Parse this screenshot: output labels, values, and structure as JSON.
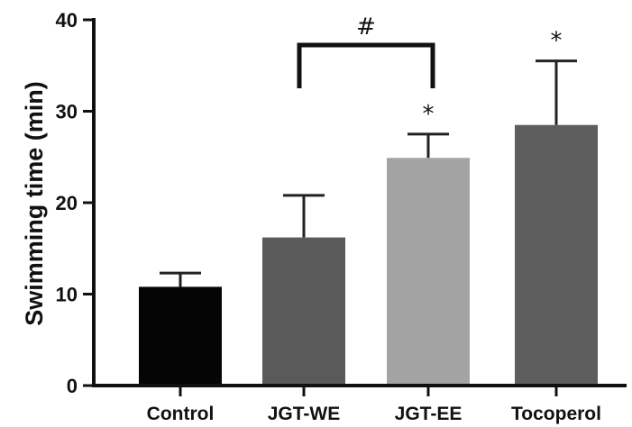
{
  "chart_data": {
    "type": "bar",
    "ylabel": "Swimming time (min)",
    "ylim": [
      0,
      40
    ],
    "yticks": [
      0,
      10,
      20,
      30,
      40
    ],
    "categories": [
      "Control",
      "JGT-WE",
      "JGT-EE",
      "Tocoperol"
    ],
    "values": [
      10.8,
      16.2,
      24.9,
      28.5
    ],
    "error_upper": [
      12.3,
      20.8,
      27.5,
      35.5
    ],
    "bar_colors": [
      "#050505",
      "#5a5a5a",
      "#a3a3a3",
      "#5e5e5e"
    ],
    "significance": [
      "",
      "",
      "*",
      "*"
    ],
    "comparison": {
      "from": "JGT-WE",
      "to": "JGT-EE",
      "symbol": "#"
    },
    "grid": false,
    "legend": "none"
  }
}
